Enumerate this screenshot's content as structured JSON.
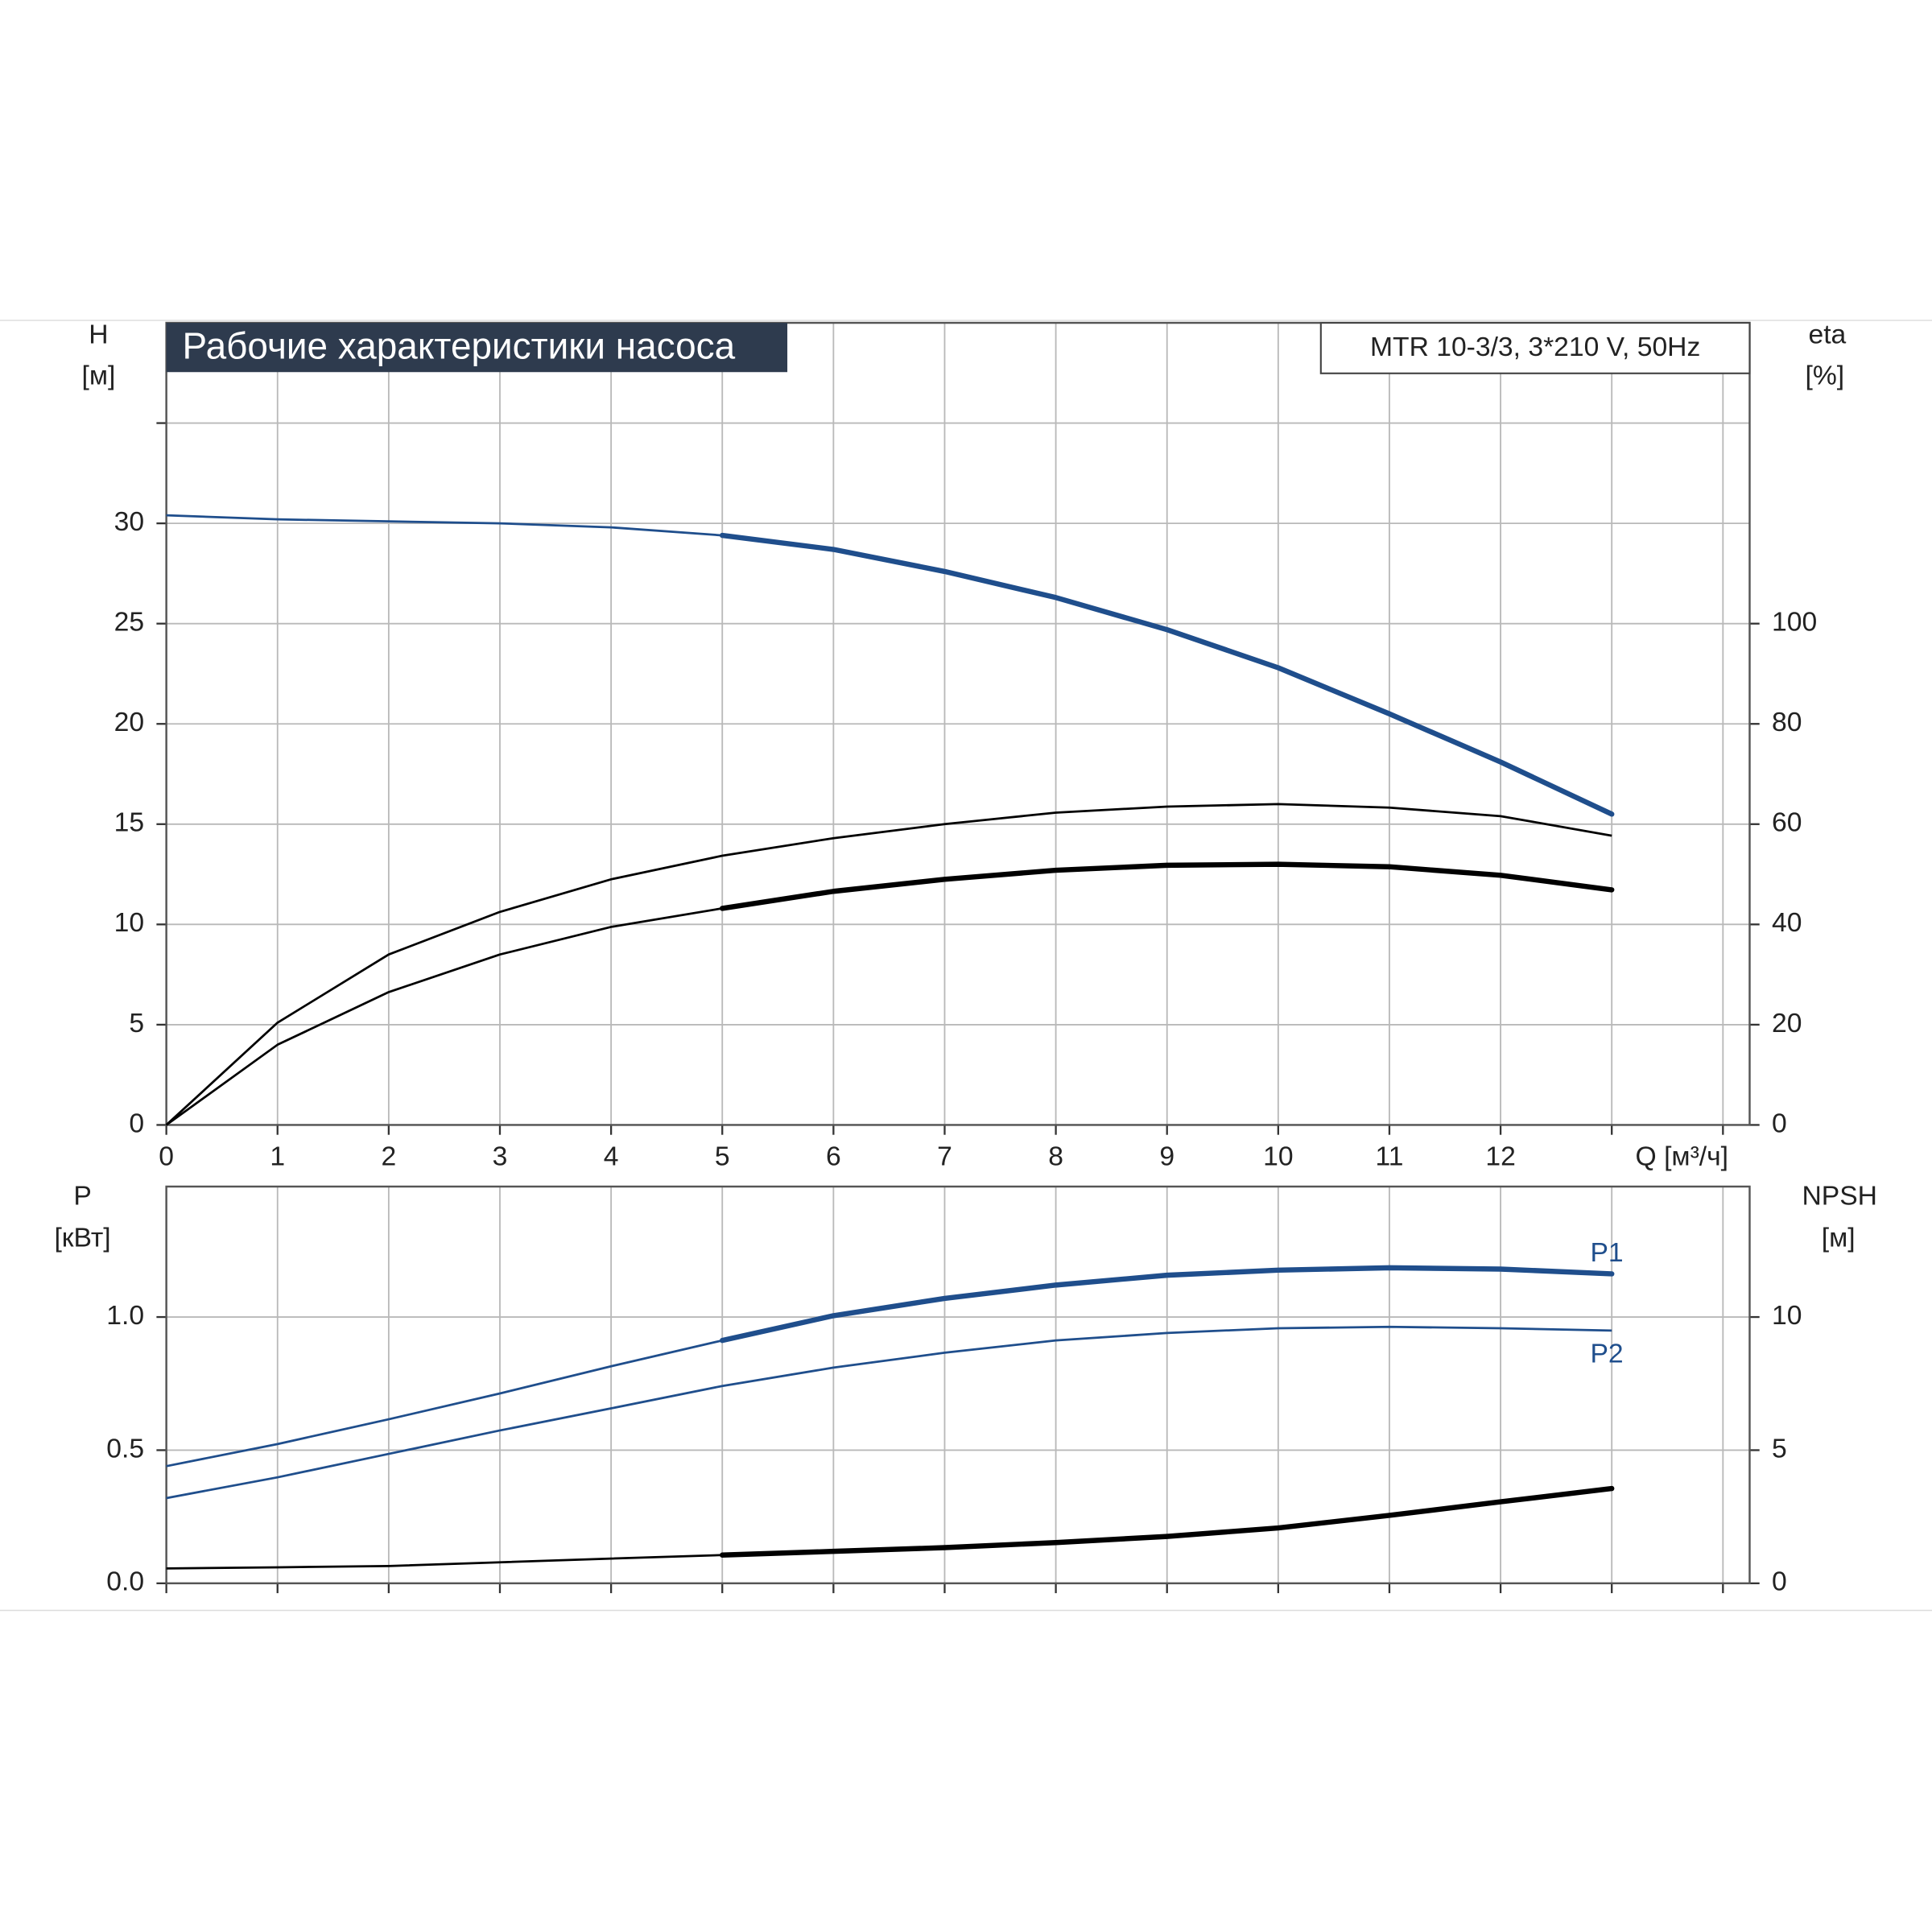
{
  "chart_data": [
    {
      "type": "line",
      "title": "Рабочие характеристики насоса",
      "model": "MTR 10-3/3, 3*210 V, 50Hz",
      "y_label": "H",
      "y_unit": "[м]",
      "y2_label": "eta",
      "y2_unit": "[%]",
      "x_label": "Q [м³/ч]",
      "x": [
        0,
        1,
        2,
        3,
        4,
        5,
        6,
        7,
        8,
        9,
        10,
        11,
        12,
        13
      ],
      "xlim": [
        0,
        14.24
      ],
      "xticks": [
        0,
        1,
        2,
        3,
        4,
        5,
        6,
        7,
        8,
        9,
        10,
        11,
        12,
        {
          "value": 13,
          "label": null
        },
        {
          "value": 14,
          "label": null
        }
      ],
      "x_tick_labels": true,
      "ylim": [
        0,
        40
      ],
      "yticks": [
        0,
        5,
        10,
        15,
        20,
        25,
        30,
        {
          "value": 35,
          "label": null
        }
      ],
      "y2lim": [
        0,
        160
      ],
      "y2ticks": [
        0,
        20,
        40,
        60,
        80,
        100
      ],
      "grid": true,
      "operating_range": [
        5,
        13
      ],
      "series": [
        {
          "color": "#1f4e8c",
          "bold_in_range": true,
          "values": [
            30.4,
            30.2,
            30.1,
            30.0,
            29.8,
            29.4,
            28.7,
            27.6,
            26.3,
            24.7,
            22.8,
            20.5,
            18.1,
            15.5
          ]
        },
        {
          "color": "#000000",
          "axis": "y2",
          "bold_in_range": false,
          "values": [
            0,
            20.4,
            34,
            42.5,
            49,
            53.7,
            57.2,
            60,
            62.3,
            63.5,
            64,
            63.3,
            61.6,
            57.7
          ]
        },
        {
          "color": "#000000",
          "axis": "y2",
          "bold_in_range": true,
          "values": [
            0,
            16,
            26.5,
            34,
            39.5,
            43.2,
            46.6,
            49,
            50.8,
            51.8,
            52,
            51.5,
            49.8,
            46.9
          ]
        }
      ]
    },
    {
      "type": "line",
      "y_label": "P",
      "y_unit": "[кВт]",
      "y2_label": "NPSH",
      "y2_unit": "[м]",
      "x": [
        0,
        1,
        2,
        3,
        4,
        5,
        6,
        7,
        8,
        9,
        10,
        11,
        12,
        13
      ],
      "xlim": [
        0,
        14.24
      ],
      "xticks": [
        0,
        1,
        2,
        3,
        4,
        5,
        6,
        7,
        8,
        9,
        10,
        11,
        12,
        13,
        14
      ],
      "x_tick_labels": false,
      "ylim": [
        0,
        1.49
      ],
      "yticks": [
        {
          "value": 0,
          "label": "0.0"
        },
        {
          "value": 0.5,
          "label": "0.5"
        },
        {
          "value": 1,
          "label": "1.0"
        }
      ],
      "y2lim": [
        0,
        14.9
      ],
      "y2ticks": [
        0,
        5,
        10
      ],
      "grid": true,
      "operating_range": [
        5,
        13
      ],
      "series": [
        {
          "name": "P1",
          "color": "#1f4e8c",
          "bold_in_range": true,
          "values": [
            0.44,
            0.523,
            0.616,
            0.713,
            0.815,
            0.912,
            1.005,
            1.07,
            1.12,
            1.157,
            1.176,
            1.185,
            1.18,
            1.162
          ]
        },
        {
          "name": "P2",
          "color": "#1f4e8c",
          "bold_in_range": false,
          "values": [
            0.32,
            0.398,
            0.486,
            0.574,
            0.657,
            0.741,
            0.81,
            0.866,
            0.912,
            0.94,
            0.958,
            0.963,
            0.958,
            0.949
          ]
        },
        {
          "color": "#000000",
          "axis": "y2",
          "bold_in_range": true,
          "values": [
            0.56,
            0.6,
            0.65,
            0.79,
            0.93,
            1.06,
            1.2,
            1.34,
            1.53,
            1.76,
            2.08,
            2.55,
            3.06,
            3.56
          ]
        }
      ]
    }
  ]
}
